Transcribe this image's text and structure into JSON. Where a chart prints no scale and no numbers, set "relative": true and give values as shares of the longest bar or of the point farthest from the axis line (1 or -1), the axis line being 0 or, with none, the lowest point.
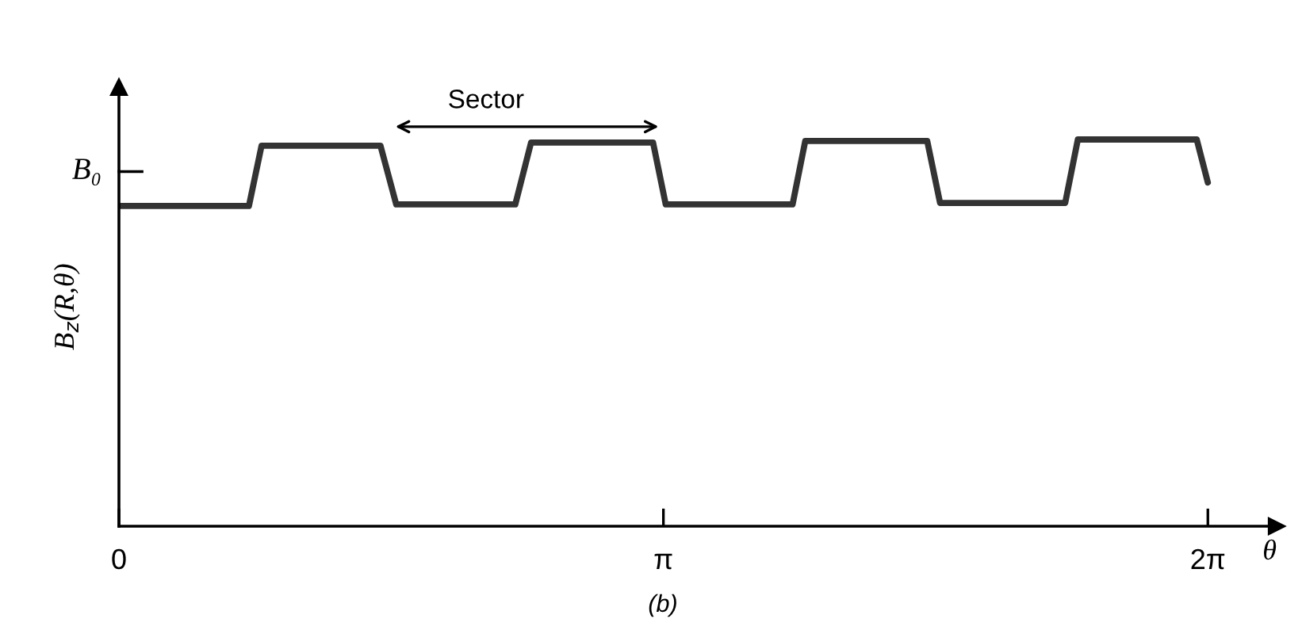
{
  "chart_data": {
    "type": "line",
    "relative": true,
    "xlabel": "θ",
    "ylabel": "B$_{z}$(R,θ)",
    "x": [
      0,
      0.75,
      0.823,
      1.509,
      1.6,
      2.287,
      2.378,
      3.082,
      3.155,
      3.887,
      3.96,
      4.664,
      4.738,
      5.46,
      5.533,
      6.219,
      6.283
    ],
    "series": [
      {
        "color": "#333333",
        "values": [
          0.828,
          0.828,
          0.984,
          0.984,
          0.832,
          0.832,
          0.992,
          0.992,
          0.832,
          0.832,
          0.996,
          0.996,
          0.836,
          0.836,
          1,
          1,
          0.889
        ]
      }
    ],
    "xlim": [
      0,
      6.68
    ],
    "xticks": [
      0,
      {
        "value": 3.1416,
        "label": "π"
      },
      {
        "value": 6.2832,
        "label": "2π"
      }
    ],
    "ref_lines": [
      {
        "axis": "y",
        "value": 0.917,
        "label": "B₀"
      }
    ],
    "annotations": [
      "Sector",
      "(b)"
    ],
    "grid": false,
    "marker": "none",
    "line_style": "solid"
  }
}
